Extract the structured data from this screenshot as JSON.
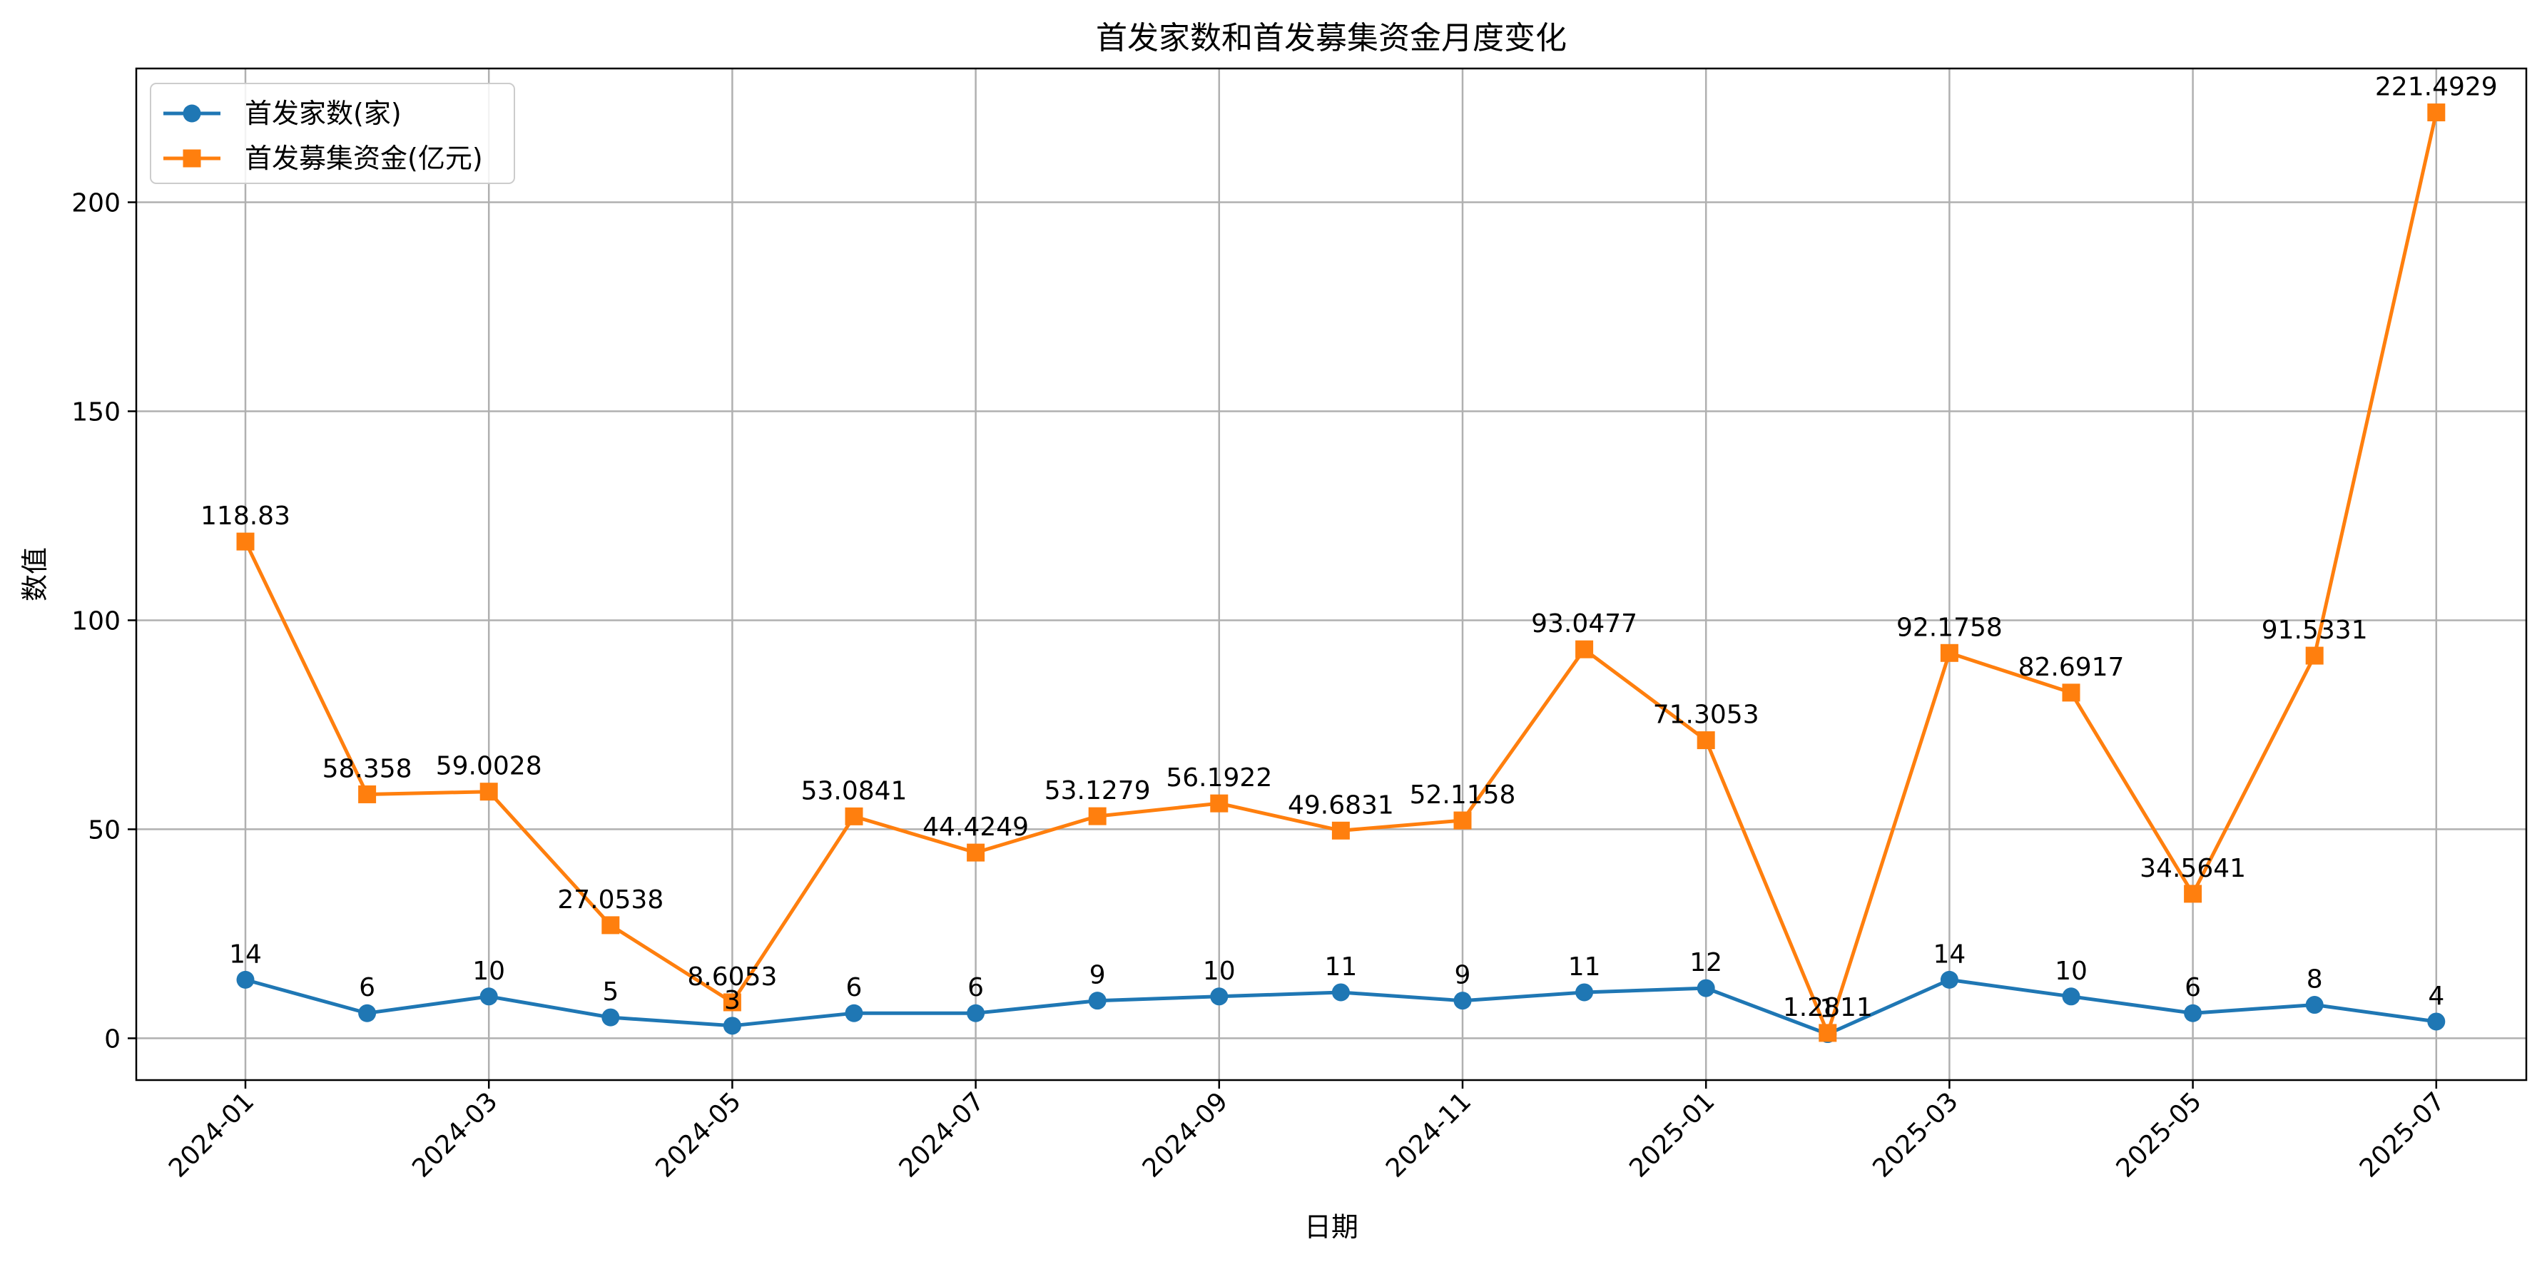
{
  "chart_data": {
    "type": "line",
    "title": "首发家数和首发募集资金月度变化",
    "xlabel": "日期",
    "ylabel": "数值",
    "ylim": [
      -10,
      232
    ],
    "yticks": [
      0,
      50,
      100,
      150,
      200
    ],
    "grid": true,
    "legend_position": "top-left",
    "x": [
      "2024-01",
      "2024-02",
      "2024-03",
      "2024-04",
      "2024-05",
      "2024-06",
      "2024-07",
      "2024-08",
      "2024-09",
      "2024-10",
      "2024-11",
      "2024-12",
      "2025-01",
      "2025-02",
      "2025-03",
      "2025-04",
      "2025-05",
      "2025-06",
      "2025-07"
    ],
    "xticks": [
      "2024-01",
      "2024-03",
      "2024-05",
      "2024-07",
      "2024-09",
      "2024-11",
      "2025-01",
      "2025-03",
      "2025-05",
      "2025-07"
    ],
    "series": [
      {
        "name": "首发家数(家)",
        "color": "#1f77b4",
        "marker": "circle",
        "values": [
          14,
          6,
          10,
          5,
          3,
          6,
          6,
          9,
          10,
          11,
          9,
          11,
          12,
          1,
          14,
          10,
          6,
          8,
          4
        ],
        "labels": [
          "14",
          "6",
          "10",
          "5",
          "3",
          "6",
          "6",
          "9",
          "10",
          "11",
          "9",
          "11",
          "12",
          "1",
          "14",
          "10",
          "6",
          "8",
          "4"
        ]
      },
      {
        "name": "首发募集资金(亿元)",
        "color": "#ff7f0e",
        "marker": "square",
        "values": [
          118.83,
          58.358,
          59.0028,
          27.0538,
          8.6053,
          53.0841,
          44.4249,
          53.1279,
          56.1922,
          49.6831,
          52.1158,
          93.0477,
          71.3053,
          1.2811,
          92.1758,
          82.6917,
          34.5641,
          91.5331,
          221.4929
        ],
        "labels": [
          "118.83",
          "58.358",
          "59.0028",
          "27.0538",
          "8.6053",
          "53.0841",
          "44.4249",
          "53.1279",
          "56.1922",
          "49.6831",
          "52.1158",
          "93.0477",
          "71.3053",
          "1.2811",
          "92.1758",
          "82.6917",
          "34.5641",
          "91.5331",
          "221.4929"
        ]
      }
    ]
  }
}
